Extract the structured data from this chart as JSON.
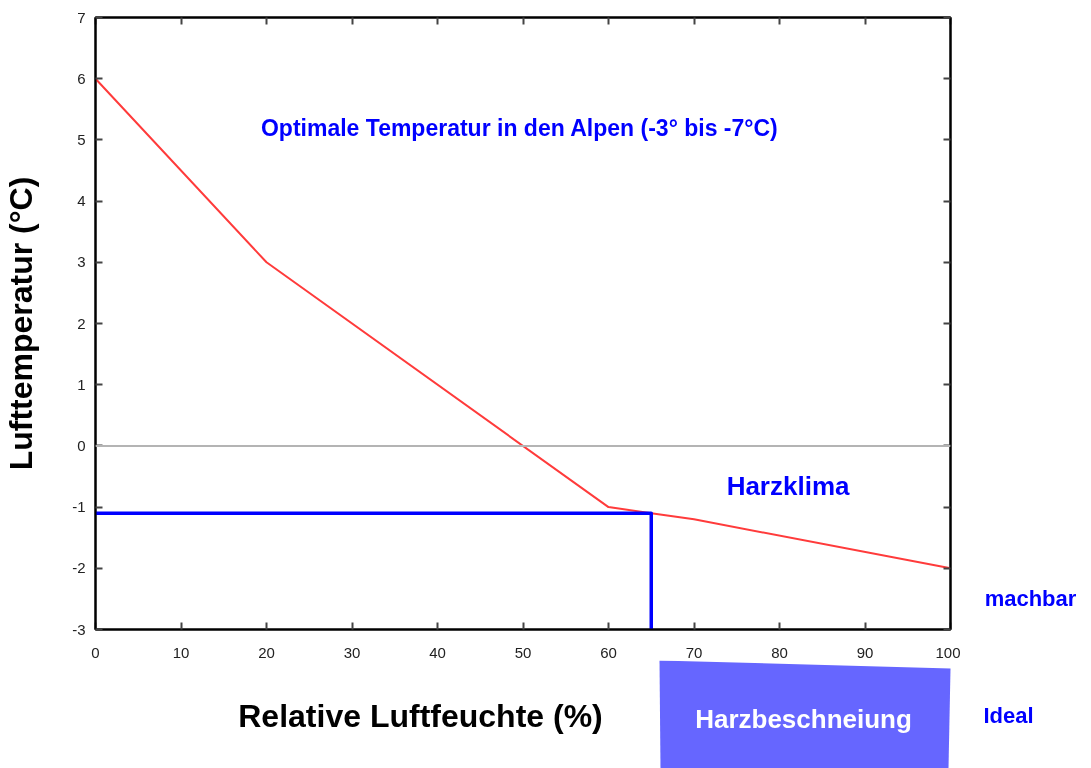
{
  "chart_data": {
    "type": "line",
    "xlabel": "Relative Luftfeuchte (%)",
    "ylabel": "Lufttemperatur (°C)",
    "series": [
      {
        "color": "#ff3b3b",
        "x": [
          0,
          20,
          60,
          65,
          70,
          100
        ],
        "values": [
          6,
          3,
          -1,
          -1.1,
          -1.2,
          -2
        ]
      },
      {
        "color": "#0000ff",
        "x": [
          0,
          65,
          65
        ],
        "values": [
          -1.1,
          -1.1,
          -3
        ]
      }
    ],
    "xlim": [
      0,
      100
    ],
    "xticks": [
      0,
      10,
      20,
      30,
      40,
      50,
      60,
      70,
      80,
      90,
      100
    ],
    "ylim": [
      -3,
      7
    ],
    "yticks": [
      -3,
      -2,
      -1,
      0,
      1,
      2,
      3,
      4,
      5,
      6,
      7
    ],
    "ref_lines": [
      {
        "axis": "y",
        "value": 0,
        "color": "#b4b4b4"
      }
    ],
    "annotations": [
      "Optimale Temperatur in den Alpen  (-3° bis -7°C)",
      "Harzklima",
      "machbar",
      "Ideal",
      "Harzbeschneiung"
    ],
    "grid": false
  }
}
